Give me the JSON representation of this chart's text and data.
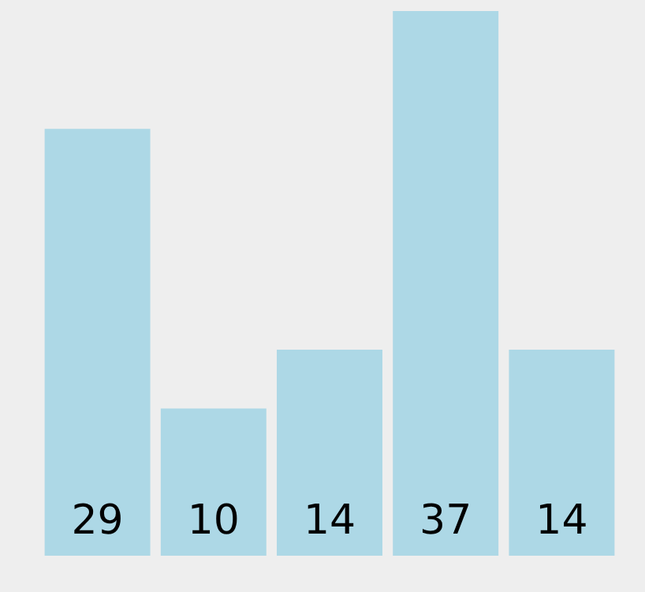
{
  "chart_data": {
    "type": "bar",
    "categories": [
      null,
      null,
      null,
      null,
      null
    ],
    "values": [
      29,
      10,
      14,
      37,
      14
    ],
    "color": "#add8e6",
    "ylim": [
      0,
      37
    ],
    "data_labels": true,
    "grid": false,
    "legend": false,
    "tick_labels": false
  }
}
